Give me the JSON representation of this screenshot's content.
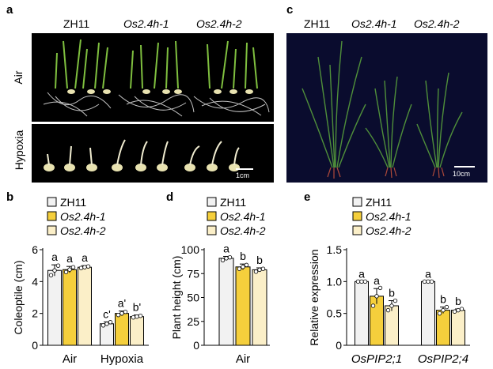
{
  "panels": {
    "a": {
      "label": "a",
      "genotypes": [
        "ZH11",
        "Os2.4h-1",
        "Os2.4h-2"
      ],
      "genotype_italic": [
        false,
        true,
        true
      ],
      "rows": [
        "Air",
        "Hypoxia"
      ],
      "scale": "1cm"
    },
    "c": {
      "label": "c",
      "genotypes": [
        "ZH11",
        "Os2.4h-1",
        "Os2.4h-2"
      ],
      "genotype_italic": [
        false,
        true,
        true
      ],
      "scale": "10cm"
    }
  },
  "legend": {
    "entries": [
      "ZH11",
      "Os2.4h-1",
      "Os2.4h-2"
    ],
    "italic": [
      false,
      true,
      true
    ]
  },
  "colors": {
    "zh11": "#f2f2f2",
    "os1": "#f5cf3c",
    "os2": "#fbefc8",
    "dots": "#ffffff",
    "stroke": "#000000",
    "photo_bg": "#000000",
    "photo_c_bg": "#0a0c2e"
  },
  "chart_data": [
    {
      "panel": "b",
      "type": "bar",
      "ylabel": "Coleoptile (cm)",
      "ylim": [
        0,
        6
      ],
      "yticks": [
        0,
        2,
        4,
        6
      ],
      "categories": [
        "Air",
        "Hypoxia"
      ],
      "series": [
        {
          "name": "ZH11",
          "values": [
            4.7,
            1.35
          ],
          "errors": [
            0.35,
            0.12
          ],
          "letters": [
            "a",
            "c'"
          ],
          "points": [
            [
              4.4,
              4.7,
              5.0
            ],
            [
              1.25,
              1.35,
              1.45
            ]
          ]
        },
        {
          "name": "Os2.4h-1",
          "values": [
            4.75,
            2.0
          ],
          "errors": [
            0.2,
            0.15
          ],
          "letters": [
            "a",
            "a'"
          ],
          "points": [
            [
              4.6,
              4.75,
              4.9
            ],
            [
              1.9,
              2.0,
              2.1
            ]
          ]
        },
        {
          "name": "Os2.4h-2",
          "values": [
            4.9,
            1.8
          ],
          "errors": [
            0.1,
            0.1
          ],
          "letters": [
            "a",
            "b'"
          ],
          "points": [
            [
              4.85,
              4.9,
              4.95
            ],
            [
              1.75,
              1.8,
              1.85
            ]
          ]
        }
      ]
    },
    {
      "panel": "d",
      "type": "bar",
      "ylabel": "Plant height (cm)",
      "ylim": [
        0,
        100
      ],
      "yticks": [
        0,
        25,
        50,
        75,
        100
      ],
      "categories": [
        "Air"
      ],
      "series": [
        {
          "name": "ZH11",
          "values": [
            91
          ],
          "errors": [
            2
          ],
          "letters": [
            "a"
          ],
          "points": [
            [
              89,
              91,
              92
            ]
          ]
        },
        {
          "name": "Os2.4h-1",
          "values": [
            82
          ],
          "errors": [
            3
          ],
          "letters": [
            "b"
          ],
          "points": [
            [
              80,
              82,
              84
            ]
          ]
        },
        {
          "name": "Os2.4h-2",
          "values": [
            79
          ],
          "errors": [
            2
          ],
          "letters": [
            "b"
          ],
          "points": [
            [
              77,
              79,
              80
            ]
          ]
        }
      ]
    },
    {
      "panel": "e",
      "type": "bar",
      "ylabel": "Relative expression",
      "ylim": [
        0,
        1.5
      ],
      "yticks": [
        0,
        0.5,
        1.0,
        1.5
      ],
      "ytick_labels": [
        "0",
        "0.5",
        "1.0",
        "1.5"
      ],
      "categories": [
        "OsPIP2;1",
        "OsPIP2;4"
      ],
      "series": [
        {
          "name": "ZH11",
          "values": [
            1.0,
            1.0
          ],
          "errors": [
            0.0,
            0.0
          ],
          "letters": [
            "a",
            "a"
          ],
          "points": [
            [
              1.0,
              1.0,
              1.0
            ],
            [
              1.0,
              1.0,
              1.0
            ]
          ]
        },
        {
          "name": "Os2.4h-1",
          "values": [
            0.77,
            0.55
          ],
          "errors": [
            0.12,
            0.05
          ],
          "letters": [
            "a",
            "b"
          ],
          "points": [
            [
              0.62,
              0.77,
              0.9
            ],
            [
              0.5,
              0.55,
              0.6
            ]
          ]
        },
        {
          "name": "Os2.4h-2",
          "values": [
            0.62,
            0.55
          ],
          "errors": [
            0.08,
            0.02
          ],
          "letters": [
            "b",
            "b"
          ],
          "points": [
            [
              0.55,
              0.62,
              0.7
            ],
            [
              0.53,
              0.55,
              0.57
            ]
          ]
        }
      ]
    }
  ]
}
